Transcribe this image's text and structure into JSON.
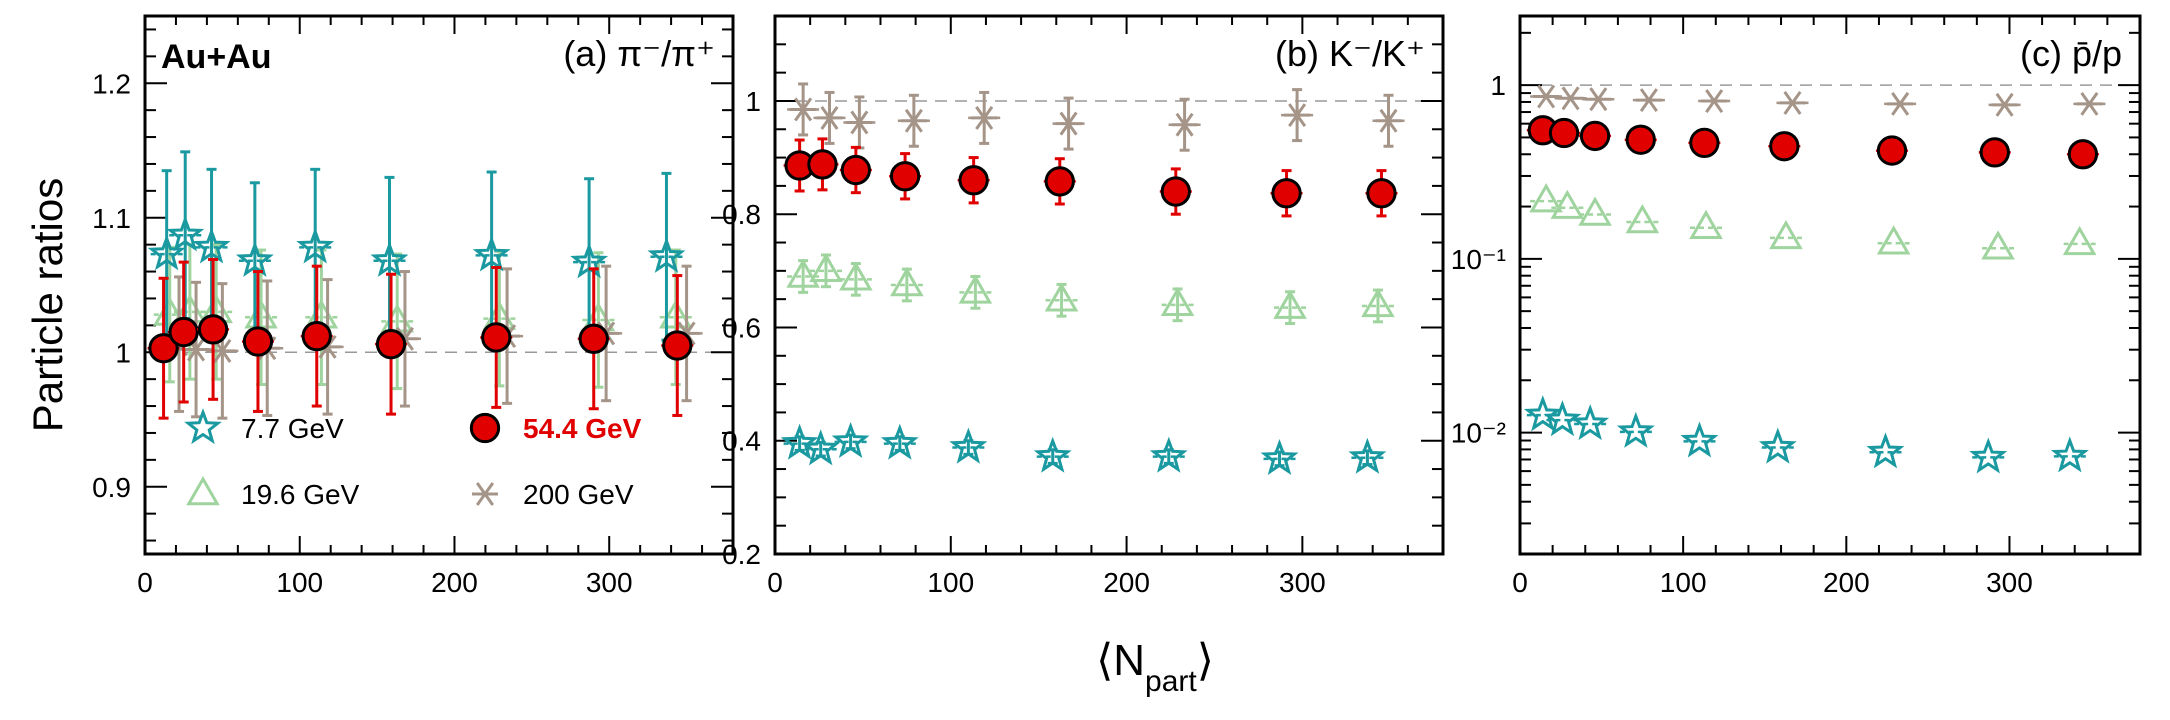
{
  "figure": {
    "ylabel": "Particle ratios",
    "xlabel_main": "⟨N",
    "xlabel_sub": "part",
    "xlabel_close": "⟩",
    "system_label": "Au+Au"
  },
  "colors": {
    "7.7 GeV": "#1a9aa0",
    "19.6 GeV": "#9fd49f",
    "54.4 GeV": "#e00000",
    "200 GeV": "#a59488",
    "ref_line": "#999999"
  },
  "chart_data": [
    {
      "type": "scatter",
      "panel": "a",
      "title": "(a) π⁻/π⁺",
      "scale": "linear",
      "xlim": [
        0,
        380
      ],
      "ylim": [
        0.85,
        1.25
      ],
      "xticks": [
        "0",
        "100",
        "200",
        "300"
      ],
      "yticks": [
        "0.9",
        "1",
        "1.1",
        "1.2"
      ],
      "ref_line": 1,
      "series": [
        {
          "name": "7.7 GeV",
          "marker": "star",
          "x": [
            14,
            26,
            43,
            71,
            110,
            158,
            224,
            287,
            337
          ],
          "y": [
            1.073,
            1.087,
            1.078,
            1.068,
            1.078,
            1.068,
            1.072,
            1.067,
            1.071
          ],
          "err": [
            0.062,
            0.062,
            0.058,
            0.058,
            0.058,
            0.062,
            0.062,
            0.062,
            0.062
          ]
        },
        {
          "name": "19.6 GeV",
          "marker": "triangle",
          "x": [
            16,
            29,
            46,
            75,
            114,
            163,
            229,
            293,
            343
          ],
          "y": [
            1.028,
            1.03,
            1.03,
            1.026,
            1.026,
            1.023,
            1.025,
            1.024,
            1.026
          ],
          "err": [
            0.05,
            0.05,
            0.05,
            0.05,
            0.05,
            0.05,
            0.05,
            0.05,
            0.05
          ]
        },
        {
          "name": "54.4 GeV",
          "marker": "circle",
          "x": [
            12,
            25,
            44,
            73,
            111,
            159,
            227,
            290,
            344
          ],
          "y": [
            1.003,
            1.015,
            1.017,
            1.008,
            1.012,
            1.006,
            1.011,
            1.01,
            1.005
          ],
          "err": [
            0.052,
            0.052,
            0.052,
            0.052,
            0.052,
            0.052,
            0.052,
            0.052,
            0.052
          ]
        },
        {
          "name": "200 GeV",
          "marker": "asterisk",
          "x": [
            22,
            33,
            50,
            79,
            118,
            168,
            234,
            298,
            350
          ],
          "y": [
            1.006,
            1.002,
            1.001,
            1.003,
            1.004,
            1.01,
            1.012,
            1.014,
            1.014
          ],
          "err": [
            0.05,
            0.05,
            0.05,
            0.05,
            0.05,
            0.05,
            0.05,
            0.05,
            0.05
          ]
        }
      ],
      "legend": [
        {
          "series": "7.7 GeV",
          "label": "7.7 GeV",
          "pos": "left-top"
        },
        {
          "series": "54.4 GeV",
          "label": "54.4 GeV",
          "pos": "right-top"
        },
        {
          "series": "19.6 GeV",
          "label": "19.6 GeV",
          "pos": "left-bottom"
        },
        {
          "series": "200 GeV",
          "label": "200 GeV",
          "pos": "right-bottom"
        }
      ]
    },
    {
      "type": "scatter",
      "panel": "b",
      "title": "(b) K⁻/K⁺",
      "scale": "linear",
      "xlim": [
        0,
        380
      ],
      "ylim": [
        0.2,
        1.15
      ],
      "xticks": [
        "0",
        "100",
        "200",
        "300"
      ],
      "yticks": [
        "0.2",
        "0.4",
        "0.6",
        "0.8",
        "1"
      ],
      "ref_line": 1,
      "series": [
        {
          "name": "7.7 GeV",
          "marker": "star",
          "x": [
            14,
            26,
            43,
            71,
            110,
            158,
            224,
            287,
            337
          ],
          "y": [
            0.395,
            0.385,
            0.398,
            0.395,
            0.388,
            0.372,
            0.372,
            0.368,
            0.37
          ],
          "err": [
            0.012,
            0.012,
            0.012,
            0.012,
            0.012,
            0.012,
            0.012,
            0.012,
            0.012
          ]
        },
        {
          "name": "19.6 GeV",
          "marker": "triangle",
          "x": [
            16,
            29,
            46,
            75,
            114,
            163,
            229,
            293,
            343
          ],
          "y": [
            0.69,
            0.7,
            0.685,
            0.675,
            0.662,
            0.648,
            0.64,
            0.635,
            0.638
          ],
          "err": [
            0.028,
            0.028,
            0.028,
            0.028,
            0.028,
            0.028,
            0.028,
            0.028,
            0.028
          ]
        },
        {
          "name": "54.4 GeV",
          "marker": "circle",
          "x": [
            14,
            27,
            46,
            74,
            113,
            162,
            228,
            291,
            345
          ],
          "y": [
            0.886,
            0.888,
            0.878,
            0.867,
            0.86,
            0.858,
            0.84,
            0.837,
            0.837
          ],
          "err": [
            0.045,
            0.045,
            0.04,
            0.04,
            0.04,
            0.04,
            0.04,
            0.04,
            0.04
          ]
        },
        {
          "name": "200 GeV",
          "marker": "asterisk",
          "x": [
            16,
            31,
            48,
            79,
            119,
            167,
            233,
            297,
            349
          ],
          "y": [
            0.985,
            0.97,
            0.962,
            0.965,
            0.97,
            0.96,
            0.958,
            0.975,
            0.965
          ],
          "err": [
            0.045,
            0.045,
            0.045,
            0.045,
            0.045,
            0.045,
            0.045,
            0.045,
            0.045
          ]
        }
      ]
    },
    {
      "type": "scatter",
      "panel": "c",
      "title": "(c) p̄/p",
      "scale": "log",
      "xlim": [
        0,
        380
      ],
      "ylim": [
        0.002,
        2.5
      ],
      "xticks": [
        "0",
        "100",
        "200",
        "300"
      ],
      "yticks": [
        "10⁻²",
        "10⁻¹",
        "1"
      ],
      "ytick_values": [
        0.01,
        0.1,
        1
      ],
      "ref_line": 1,
      "series": [
        {
          "name": "7.7 GeV",
          "marker": "star",
          "x": [
            14,
            26,
            43,
            71,
            110,
            158,
            224,
            287,
            337
          ],
          "y": [
            0.0126,
            0.0118,
            0.0112,
            0.0101,
            0.0089,
            0.0082,
            0.0077,
            0.0072,
            0.0073
          ]
        },
        {
          "name": "19.6 GeV",
          "marker": "triangle",
          "x": [
            16,
            29,
            46,
            75,
            114,
            163,
            229,
            293,
            343
          ],
          "y": [
            0.215,
            0.197,
            0.18,
            0.163,
            0.151,
            0.132,
            0.123,
            0.115,
            0.122
          ]
        },
        {
          "name": "54.4 GeV",
          "marker": "circle",
          "x": [
            14,
            27,
            46,
            74,
            113,
            162,
            228,
            291,
            345
          ],
          "y": [
            0.55,
            0.53,
            0.51,
            0.485,
            0.465,
            0.445,
            0.42,
            0.41,
            0.4
          ]
        },
        {
          "name": "200 GeV",
          "marker": "asterisk",
          "x": [
            16,
            31,
            48,
            79,
            119,
            167,
            233,
            297,
            349
          ],
          "y": [
            0.86,
            0.84,
            0.83,
            0.82,
            0.81,
            0.79,
            0.78,
            0.77,
            0.78
          ]
        }
      ]
    }
  ]
}
